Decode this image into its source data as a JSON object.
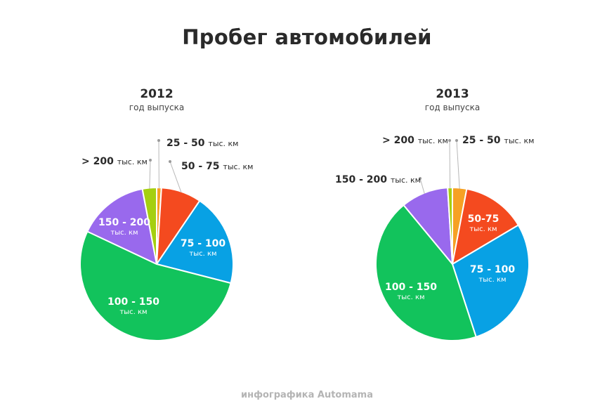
{
  "title": "Пробег автомобилей",
  "footer": "инфографика Automama",
  "chart_data": [
    {
      "type": "pie",
      "title": "2012",
      "subtitle": "год выпуска",
      "slices": [
        {
          "label": "25 - 50",
          "unit": "тыс. км",
          "value": 1.0,
          "color": "#f6a124"
        },
        {
          "label": "50 - 75",
          "unit": "тыс. км",
          "value": 8.5,
          "color": "#f44a1f"
        },
        {
          "label": "75 - 100",
          "unit": "тыс. км",
          "value": 19.5,
          "color": "#08a1e4"
        },
        {
          "label": "100 - 150",
          "unit": "тыс. км",
          "value": 53.0,
          "color": "#12c35c"
        },
        {
          "label": "150 - 200",
          "unit": "тыс. км",
          "value": 15.0,
          "color": "#9969ed"
        },
        {
          "label": "> 200",
          "unit": "тыс. км",
          "value": 3.0,
          "color": "#a5cf10"
        }
      ]
    },
    {
      "type": "pie",
      "title": "2013",
      "subtitle": "год выпуска",
      "slices": [
        {
          "label": "25 - 50",
          "unit": "тыс. км",
          "value": 3.0,
          "color": "#f6a124"
        },
        {
          "label": "50-75",
          "unit": "тыс. км",
          "value": 13.5,
          "color": "#f44a1f"
        },
        {
          "label": "75 - 100",
          "unit": "тыс. км",
          "value": 28.5,
          "color": "#08a1e4"
        },
        {
          "label": "100 - 150",
          "unit": "тыс. км",
          "value": 44.0,
          "color": "#12c35c"
        },
        {
          "label": "150 - 200",
          "unit": "тыс. км",
          "value": 10.0,
          "color": "#9969ed"
        },
        {
          "label": "> 200",
          "unit": "тыс. км",
          "value": 1.0,
          "color": "#a5cf10"
        }
      ]
    }
  ]
}
